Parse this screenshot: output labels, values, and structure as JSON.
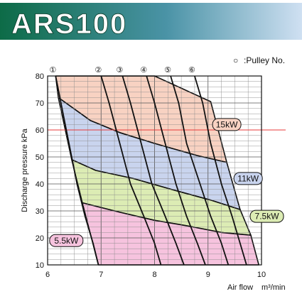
{
  "header": {
    "title": "ARS100",
    "legend_symbol": "○",
    "legend_text": ":Pulley No."
  },
  "colors": {
    "banner_left": "#0d6b47",
    "banner_right": "#cfe0f2",
    "band_15kw": "#f8d2c2",
    "band_11kw": "#c9d4ee",
    "band_7_5kw": "#dcecb4",
    "band_5_5kw": "#f6c3de",
    "reference_line": "#e83a3a"
  },
  "chart_data": {
    "type": "area",
    "xlabel": "Air flow",
    "xlabel_unit": "m³/min",
    "ylabel": "Discharge pressure kPa",
    "xlim": [
      6,
      10
    ],
    "ylim": [
      10,
      80
    ],
    "x_ticks": [
      "6",
      "7",
      "8",
      "9",
      "10"
    ],
    "y_ticks": [
      "10",
      "20",
      "30",
      "40",
      "50",
      "60",
      "70",
      "80"
    ],
    "grid": true,
    "grid_minor_x_step": 0.25,
    "grid_minor_y_step": 2,
    "reference_line_y": 60,
    "power_bands": [
      {
        "name": "15kW",
        "label_x": 9.35,
        "label_y": 62,
        "fill": "#f8d2c2",
        "points": [
          [
            6.15,
            80
          ],
          [
            8.0,
            80
          ],
          [
            9.05,
            70.5
          ],
          [
            9.35,
            48
          ],
          [
            8.8,
            50.5
          ],
          [
            8.0,
            55
          ],
          [
            7.35,
            59
          ],
          [
            6.8,
            63.5
          ],
          [
            6.2,
            72
          ]
        ]
      },
      {
        "name": "11kW",
        "label_x": 9.75,
        "label_y": 42,
        "fill": "#c9d4ee",
        "points": [
          [
            6.2,
            72
          ],
          [
            6.8,
            63.5
          ],
          [
            7.35,
            59
          ],
          [
            8.0,
            55
          ],
          [
            8.8,
            50.5
          ],
          [
            9.35,
            48
          ],
          [
            9.6,
            30.5
          ],
          [
            9.05,
            34
          ],
          [
            8.4,
            37.5
          ],
          [
            7.6,
            42
          ],
          [
            6.9,
            45
          ],
          [
            6.45,
            49
          ]
        ]
      },
      {
        "name": "7.5kW",
        "label_x": 10.1,
        "label_y": 28,
        "fill": "#dcecb4",
        "points": [
          [
            6.45,
            49
          ],
          [
            6.9,
            45
          ],
          [
            7.6,
            42
          ],
          [
            8.4,
            37.5
          ],
          [
            9.05,
            34
          ],
          [
            9.6,
            30.5
          ],
          [
            9.8,
            21
          ],
          [
            9.25,
            22
          ],
          [
            8.6,
            24.5
          ],
          [
            8.0,
            26.5
          ],
          [
            7.35,
            29.5
          ],
          [
            6.65,
            33
          ]
        ]
      },
      {
        "name": "5.5kW",
        "label_x": 6.35,
        "label_y": 19,
        "fill": "#f6c3de",
        "points": [
          [
            6.65,
            33
          ],
          [
            7.35,
            29.5
          ],
          [
            8.0,
            26.5
          ],
          [
            8.6,
            24.5
          ],
          [
            9.25,
            22
          ],
          [
            9.8,
            21
          ],
          [
            9.95,
            10
          ],
          [
            6.95,
            10
          ]
        ]
      }
    ],
    "pulley_curves": [
      {
        "name": "①",
        "points": [
          [
            6.15,
            80
          ],
          [
            6.25,
            70
          ],
          [
            6.4,
            55
          ],
          [
            6.55,
            40
          ],
          [
            6.7,
            28
          ],
          [
            6.85,
            18
          ],
          [
            6.95,
            10
          ]
        ]
      },
      {
        "name": "②",
        "points": [
          [
            7.0,
            80
          ],
          [
            7.15,
            70
          ],
          [
            7.35,
            55
          ],
          [
            7.55,
            40
          ],
          [
            7.8,
            28
          ],
          [
            8.0,
            18
          ],
          [
            8.12,
            10
          ]
        ]
      },
      {
        "name": "③",
        "points": [
          [
            7.4,
            80
          ],
          [
            7.55,
            70
          ],
          [
            7.75,
            55
          ],
          [
            7.95,
            40
          ],
          [
            8.2,
            28
          ],
          [
            8.4,
            18
          ],
          [
            8.55,
            10
          ]
        ]
      },
      {
        "name": "④",
        "points": [
          [
            7.85,
            80
          ],
          [
            8.0,
            70
          ],
          [
            8.2,
            55
          ],
          [
            8.4,
            40
          ],
          [
            8.6,
            28
          ],
          [
            8.8,
            18
          ],
          [
            8.95,
            10
          ]
        ]
      },
      {
        "name": "⑤",
        "points": [
          [
            8.3,
            80
          ],
          [
            8.45,
            70
          ],
          [
            8.6,
            55
          ],
          [
            8.85,
            40
          ],
          [
            9.05,
            28
          ],
          [
            9.25,
            18
          ],
          [
            9.38,
            10
          ]
        ]
      },
      {
        "name": "⑥",
        "points": [
          [
            8.75,
            80
          ],
          [
            8.9,
            70
          ],
          [
            9.05,
            55
          ],
          [
            9.25,
            40
          ],
          [
            9.45,
            28
          ],
          [
            9.6,
            18
          ],
          [
            9.72,
            10
          ]
        ]
      }
    ]
  }
}
